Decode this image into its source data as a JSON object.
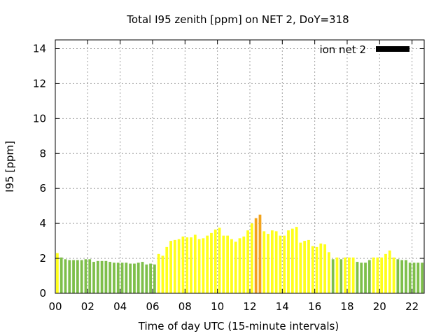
{
  "chart_data": {
    "type": "bar",
    "title": "Total I95 zenith [ppm] on NET 2, DoY=318",
    "xlabel": "Time of day UTC (15-minute intervals)",
    "ylabel": "I95 [ppm]",
    "ylim": [
      0,
      14.5
    ],
    "xlim": [
      0,
      22.75
    ],
    "yticks": [
      0,
      2,
      4,
      6,
      8,
      10,
      12,
      14
    ],
    "xticks": [
      0,
      2,
      4,
      6,
      8,
      10,
      12,
      14,
      16,
      18,
      20,
      22
    ],
    "xtick_labels": [
      "00",
      "02",
      "04",
      "06",
      "08",
      "10",
      "12",
      "14",
      "16",
      "18",
      "20",
      "22"
    ],
    "grid": true,
    "legend": {
      "position": "top-right",
      "entries": [
        {
          "label": "ion net 2",
          "color": "#000000"
        }
      ]
    },
    "bar_interval_hours": 0.25,
    "colors": {
      "green": "#7ebf4a",
      "yellow": "#ffff1a",
      "orange": "#f2a31b"
    },
    "series": [
      {
        "name": "ion net 2",
        "x": [
          0,
          0.25,
          0.5,
          0.75,
          1,
          1.25,
          1.5,
          1.75,
          2,
          2.25,
          2.5,
          2.75,
          3,
          3.25,
          3.5,
          3.75,
          4,
          4.25,
          4.5,
          4.75,
          5,
          5.25,
          5.5,
          5.75,
          6,
          6.25,
          6.5,
          6.75,
          7,
          7.25,
          7.5,
          7.75,
          8,
          8.25,
          8.5,
          8.75,
          9,
          9.25,
          9.5,
          9.75,
          10,
          10.25,
          10.5,
          10.75,
          11,
          11.25,
          11.5,
          11.75,
          12,
          12.25,
          12.5,
          12.75,
          13,
          13.25,
          13.5,
          13.75,
          14,
          14.25,
          14.5,
          14.75,
          15,
          15.25,
          15.5,
          15.75,
          16,
          16.25,
          16.5,
          16.75,
          17,
          17.25,
          17.5,
          17.75,
          18,
          18.25,
          18.5,
          18.75,
          19,
          19.25,
          19.5,
          19.75,
          20,
          20.25,
          20.5,
          20.75,
          21,
          21.25,
          21.5,
          21.75,
          22,
          22.25,
          22.5
        ],
        "values": [
          2.3,
          2.05,
          1.95,
          1.9,
          1.9,
          1.9,
          1.9,
          1.95,
          1.95,
          1.8,
          1.85,
          1.85,
          1.85,
          1.8,
          1.75,
          1.75,
          1.75,
          1.75,
          1.7,
          1.7,
          1.75,
          1.8,
          1.65,
          1.7,
          1.65,
          2.25,
          2.15,
          2.65,
          3.0,
          3.05,
          3.1,
          3.25,
          3.2,
          3.2,
          3.35,
          3.1,
          3.15,
          3.3,
          3.45,
          3.65,
          3.75,
          3.3,
          3.3,
          3.1,
          2.95,
          3.15,
          3.25,
          3.6,
          4.0,
          4.3,
          4.5,
          3.55,
          3.4,
          3.6,
          3.55,
          3.3,
          3.3,
          3.6,
          3.7,
          3.8,
          2.9,
          3.0,
          3.05,
          2.7,
          2.65,
          2.85,
          2.8,
          2.35,
          1.95,
          2.05,
          1.95,
          2.05,
          2.05,
          2.05,
          1.8,
          1.75,
          1.75,
          1.9,
          2.05,
          2.05,
          2.05,
          2.25,
          2.45,
          2.05,
          1.95,
          1.9,
          1.9,
          1.75,
          1.75,
          1.75,
          1.75
        ],
        "colors": [
          "yellow",
          "green",
          "green",
          "green",
          "green",
          "green",
          "green",
          "green",
          "green",
          "green",
          "green",
          "green",
          "green",
          "green",
          "green",
          "green",
          "green",
          "green",
          "green",
          "green",
          "green",
          "green",
          "green",
          "green",
          "green",
          "yellow",
          "yellow",
          "yellow",
          "yellow",
          "yellow",
          "yellow",
          "yellow",
          "yellow",
          "yellow",
          "yellow",
          "yellow",
          "yellow",
          "yellow",
          "yellow",
          "yellow",
          "yellow",
          "yellow",
          "yellow",
          "yellow",
          "yellow",
          "yellow",
          "yellow",
          "yellow",
          "yellow",
          "orange",
          "orange",
          "yellow",
          "yellow",
          "yellow",
          "yellow",
          "yellow",
          "yellow",
          "yellow",
          "yellow",
          "yellow",
          "yellow",
          "yellow",
          "yellow",
          "yellow",
          "yellow",
          "yellow",
          "yellow",
          "yellow",
          "green",
          "yellow",
          "green",
          "yellow",
          "yellow",
          "yellow",
          "green",
          "green",
          "green",
          "green",
          "yellow",
          "yellow",
          "yellow",
          "yellow",
          "yellow",
          "yellow",
          "green",
          "green",
          "green",
          "green",
          "green",
          "green",
          "green"
        ]
      }
    ]
  }
}
